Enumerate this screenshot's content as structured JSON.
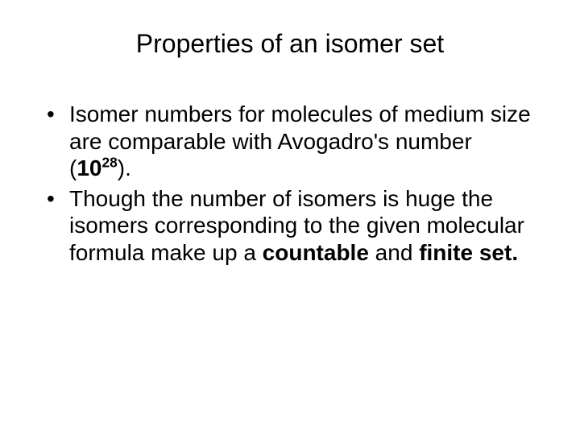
{
  "slide": {
    "title": "Properties of an isomer set",
    "bullets": [
      {
        "pre": "Isomer numbers for molecules of medium size are comparable  with  Avogadro's number  (",
        "num_base": "10",
        "num_exp": "28",
        "post": ")."
      },
      {
        "pre": "Though the number of isomers is huge the isomers  corresponding to the given molecular formula make up a ",
        "bold1": "countable",
        "mid": " and ",
        "bold2": "finite set."
      }
    ],
    "colors": {
      "background": "#ffffff",
      "text": "#000000"
    },
    "typography": {
      "title_fontsize": 32,
      "body_fontsize": 28,
      "font_family": "Arial"
    }
  }
}
